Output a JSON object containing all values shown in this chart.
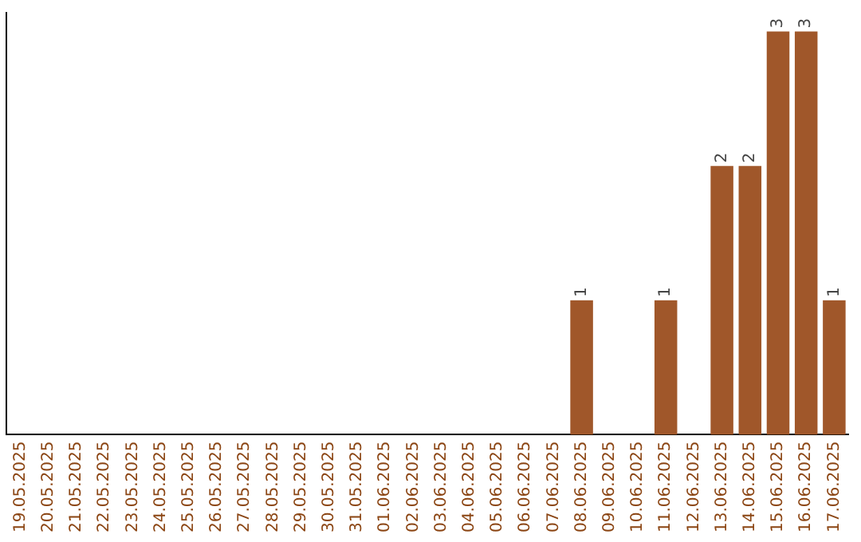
{
  "chart_data": {
    "type": "bar",
    "categories": [
      "19.05.2025",
      "20.05.2025",
      "21.05.2025",
      "22.05.2025",
      "23.05.2025",
      "24.05.2025",
      "25.05.2025",
      "26.05.2025",
      "27.05.2025",
      "28.05.2025",
      "29.05.2025",
      "30.05.2025",
      "31.05.2025",
      "01.06.2025",
      "02.06.2025",
      "03.06.2025",
      "04.06.2025",
      "05.06.2025",
      "06.06.2025",
      "07.06.2025",
      "08.06.2025",
      "09.06.2025",
      "10.06.2025",
      "11.06.2025",
      "12.06.2025",
      "13.06.2025",
      "14.06.2025",
      "15.06.2025",
      "16.06.2025",
      "17.06.2025"
    ],
    "values": [
      null,
      null,
      null,
      null,
      null,
      null,
      null,
      null,
      null,
      null,
      null,
      null,
      null,
      null,
      null,
      null,
      null,
      null,
      null,
      null,
      1,
      null,
      null,
      1,
      null,
      2,
      2,
      3,
      3,
      1
    ],
    "data_labels": true,
    "color": "#a0572a",
    "ylim": [
      0,
      3.14
    ],
    "tick_labels": "x",
    "grid": false,
    "legend": false
  }
}
